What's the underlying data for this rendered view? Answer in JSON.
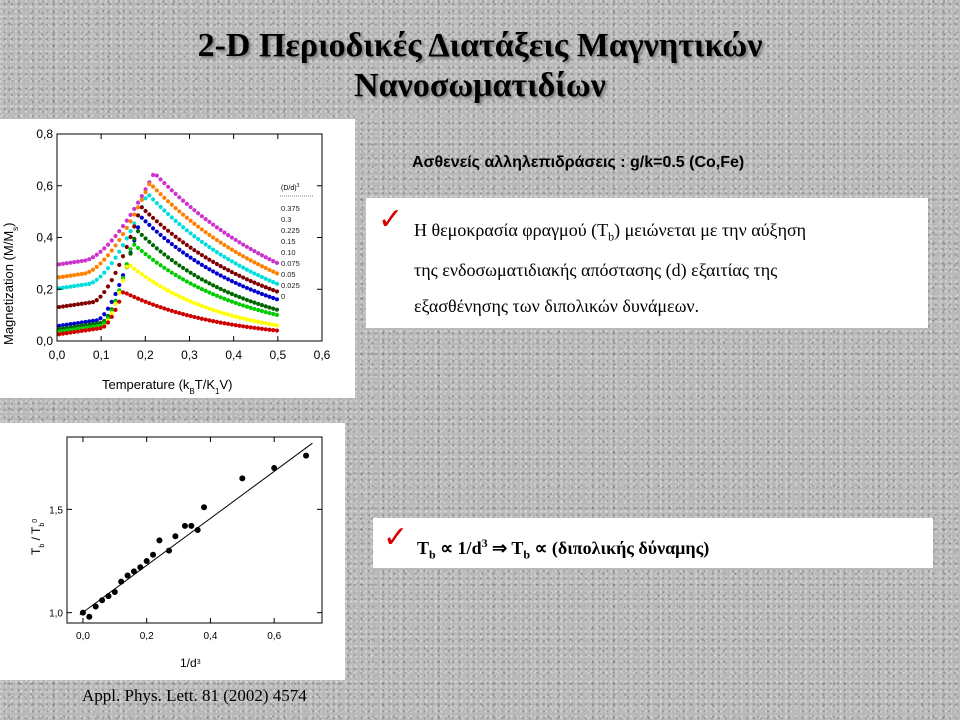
{
  "title_lines": [
    "2-D Περιοδικές Διατάξεις Μαγνητικών",
    "Νανοσωματιδίων"
  ],
  "subheading": "Ασθενείς αλληλεπιδράσεις : g/k=0.5 (Co,Fe)",
  "bullet1": {
    "check": "✓",
    "lines": [
      "Η θεμοκρασία φραγμού (T_b) μειώνεται με την αύξηση",
      "της ενδοσωματιδιακής απόστασης (d) εξαιτίας της",
      "εξασθένησης των διπολικών δυνάμεων."
    ]
  },
  "bullet2": {
    "check": "✓",
    "text": "T_b ∝ 1/d³ ⇒ T_b ∝ (διπολικής δύναμης)"
  },
  "citation": "Appl. Phys. Lett. 81 (2002) 4574",
  "chart_data": [
    {
      "type": "scatter",
      "xlabel": "Temperature (k_B T/K_1 V)",
      "ylabel": "Magnetization (M/M_s)",
      "xlim": [
        0.0,
        0.6
      ],
      "ylim": [
        0.0,
        0.8
      ],
      "xticks": [
        "0,0",
        "0,1",
        "0,2",
        "0,3",
        "0,4",
        "0,5",
        "0,6"
      ],
      "yticks": [
        "0,0",
        "0,2",
        "0,4",
        "0,6",
        "0,8"
      ],
      "legend_title": "(D/d)³",
      "legend_position": "right",
      "series": [
        {
          "name": "0.375",
          "color": "#cc33cc",
          "low": 0.31,
          "tmin": 0.06,
          "peakT": 0.22,
          "peak": 0.65,
          "end": 0.3
        },
        {
          "name": "0.3",
          "color": "#ff8000",
          "low": 0.26,
          "tmin": 0.06,
          "peakT": 0.21,
          "peak": 0.61,
          "end": 0.26
        },
        {
          "name": "0.225",
          "color": "#00dddd",
          "low": 0.22,
          "tmin": 0.07,
          "peakT": 0.205,
          "peak": 0.57,
          "end": 0.22
        },
        {
          "name": "0.15",
          "color": "#800000",
          "low": 0.15,
          "tmin": 0.08,
          "peakT": 0.19,
          "peak": 0.52,
          "end": 0.19
        },
        {
          "name": "0.10",
          "color": "#0000cc",
          "low": 0.08,
          "tmin": 0.09,
          "peakT": 0.19,
          "peak": 0.48,
          "end": 0.16
        },
        {
          "name": "0.075",
          "color": "#006600",
          "low": 0.07,
          "tmin": 0.1,
          "peakT": 0.18,
          "peak": 0.43,
          "end": 0.12
        },
        {
          "name": "0.05",
          "color": "#00cc00",
          "low": 0.06,
          "tmin": 0.1,
          "peakT": 0.17,
          "peak": 0.38,
          "end": 0.1
        },
        {
          "name": "0.025",
          "color": "#ffff00",
          "low": 0.05,
          "tmin": 0.1,
          "peakT": 0.16,
          "peak": 0.3,
          "end": 0.06
        },
        {
          "name": "0",
          "color": "#cc0000",
          "low": 0.05,
          "tmin": 0.1,
          "peakT": 0.15,
          "peak": 0.19,
          "end": 0.04
        }
      ]
    },
    {
      "type": "scatter",
      "xlabel": "1/d³",
      "ylabel": "T_b / T_b⁰",
      "xlim": [
        -0.05,
        0.75
      ],
      "ylim": [
        0.95,
        1.85
      ],
      "xticks": [
        "0,0",
        "0,2",
        "0,4",
        "0,6"
      ],
      "yticks": [
        "1,0",
        "1,5"
      ],
      "points": [
        [
          0.0,
          1.0
        ],
        [
          0.02,
          0.98
        ],
        [
          0.04,
          1.03
        ],
        [
          0.06,
          1.06
        ],
        [
          0.08,
          1.08
        ],
        [
          0.1,
          1.1
        ],
        [
          0.12,
          1.15
        ],
        [
          0.14,
          1.18
        ],
        [
          0.16,
          1.2
        ],
        [
          0.18,
          1.22
        ],
        [
          0.2,
          1.25
        ],
        [
          0.22,
          1.28
        ],
        [
          0.24,
          1.35
        ],
        [
          0.27,
          1.3
        ],
        [
          0.29,
          1.37
        ],
        [
          0.32,
          1.42
        ],
        [
          0.34,
          1.42
        ],
        [
          0.36,
          1.4
        ],
        [
          0.38,
          1.51
        ],
        [
          0.5,
          1.65
        ],
        [
          0.6,
          1.7
        ],
        [
          0.7,
          1.76
        ]
      ],
      "fit_line": [
        [
          -0.01,
          0.99
        ],
        [
          0.72,
          1.82
        ]
      ]
    }
  ]
}
